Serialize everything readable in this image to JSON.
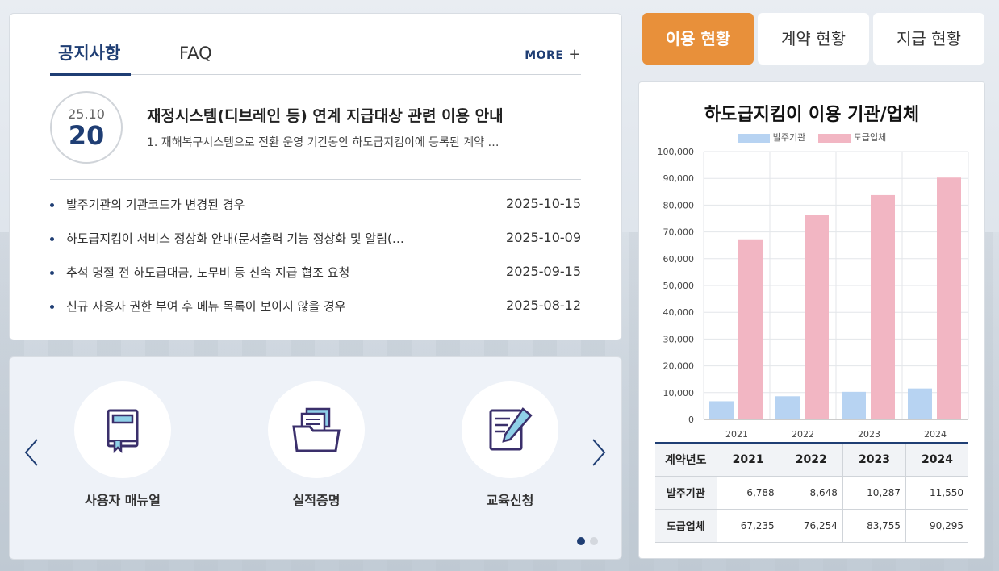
{
  "notice": {
    "tabs": [
      {
        "label": "공지사항"
      },
      {
        "label": "FAQ"
      }
    ],
    "more_label": "MORE",
    "featured": {
      "year_month": "25.10",
      "day": "20",
      "title": "재정시스템(디브레인 등) 연계 지급대상 관련 이용 안내",
      "desc": "1. 재해복구시스템으로 전환 운영 기간동안 하도급지킴이에 등록된 계약 …"
    },
    "items": [
      {
        "title": "발주기관의 기관코드가 변경된 경우",
        "date": "2025-10-15"
      },
      {
        "title": "하도급지킴이 서비스 정상화 안내(문서출력 기능 정상화 및 알림(…",
        "date": "2025-10-09"
      },
      {
        "title": "추석 명절 전 하도급대금, 노무비 등 신속 지급 협조 요청",
        "date": "2025-09-15"
      },
      {
        "title": "신규 사용자 권한 부여 후 메뉴 목록이 보이지 않을 경우",
        "date": "2025-08-12"
      }
    ]
  },
  "quick": {
    "items": [
      {
        "label": "사용자 매뉴얼",
        "icon": "manual-book-icon"
      },
      {
        "label": "실적증명",
        "icon": "folder-documents-icon"
      },
      {
        "label": "교육신청",
        "icon": "document-pen-icon"
      }
    ],
    "pages": 2,
    "current_page": 1
  },
  "right_tabs": [
    {
      "label": "이용 현황",
      "active": true
    },
    {
      "label": "계약 현황",
      "active": false
    },
    {
      "label": "지급 현황",
      "active": false
    }
  ],
  "colors": {
    "accent": "#e8903a",
    "navy": "#1f3e74",
    "series1": "#b7d3f2",
    "series2": "#f2b6c3"
  },
  "chart_data": {
    "type": "bar",
    "title": "하도급지킴이 이용 기관/업체",
    "categories": [
      "2021",
      "2022",
      "2023",
      "2024"
    ],
    "series": [
      {
        "name": "발주기관",
        "values": [
          6788,
          8648,
          10287,
          11550
        ]
      },
      {
        "name": "도급업체",
        "values": [
          67235,
          76254,
          83755,
          90295
        ]
      }
    ],
    "ylim": [
      0,
      100000
    ],
    "yticks": [
      "0",
      "10,000",
      "20,000",
      "30,000",
      "40,000",
      "50,000",
      "60,000",
      "70,000",
      "80,000",
      "90,000",
      "100,000"
    ],
    "legend": "top",
    "grid": true
  },
  "table": {
    "header": "계약년도",
    "years": [
      "2021",
      "2022",
      "2023",
      "2024"
    ],
    "rows": [
      {
        "label": "발주기관",
        "values": [
          "6,788",
          "8,648",
          "10,287",
          "11,550"
        ]
      },
      {
        "label": "도급업체",
        "values": [
          "67,235",
          "76,254",
          "83,755",
          "90,295"
        ]
      }
    ]
  }
}
